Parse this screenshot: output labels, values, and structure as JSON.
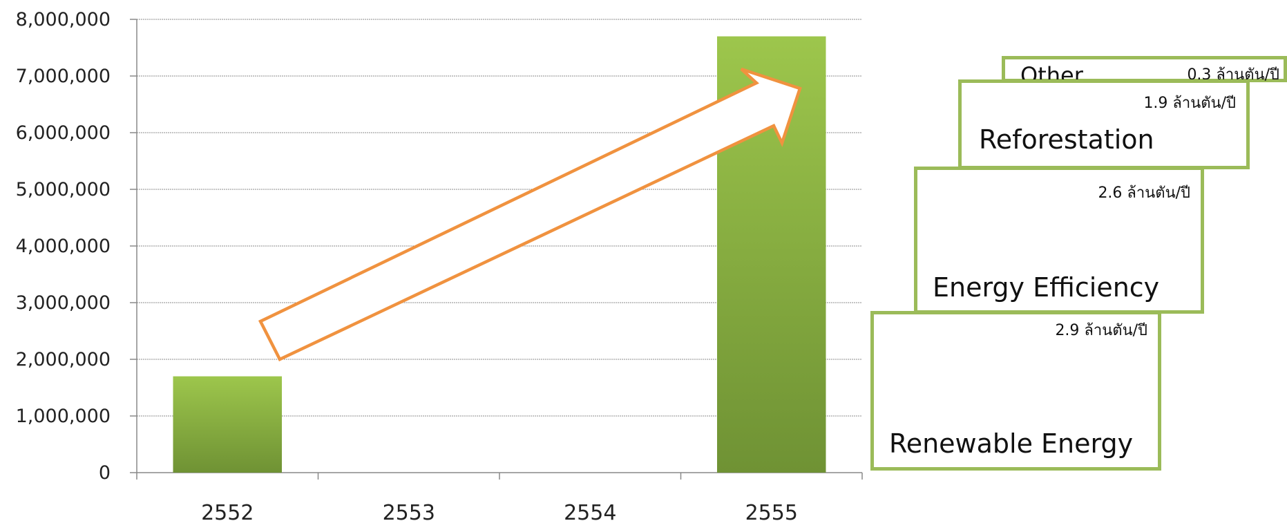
{
  "chart_data": {
    "type": "bar",
    "title": "",
    "xlabel": "",
    "ylabel": "",
    "categories": [
      "2552",
      "2553",
      "2554",
      "2555"
    ],
    "values": [
      1700000,
      null,
      null,
      7700000
    ],
    "ylim": [
      0,
      8000000
    ],
    "yticks": [
      "0",
      "1,000,000",
      "2,000,000",
      "3,000,000",
      "4,000,000",
      "5,000,000",
      "6,000,000",
      "7,000,000",
      "8,000,000"
    ],
    "grid": true,
    "bar_color": "#8fb04a",
    "arrow_color": "#f0923f"
  },
  "breakdown": [
    {
      "name": "Renewable Energy",
      "value": "2.9 ล้านตัน/ปี"
    },
    {
      "name": "Energy Efficiency",
      "value": "2.6 ล้านตัน/ปี"
    },
    {
      "name": "Reforestation",
      "value": "1.9 ล้านตัน/ปี"
    },
    {
      "name": "Other",
      "value": "0.3 ล้านตัน/ปี"
    }
  ],
  "colors": {
    "box_border": "#9bbb59",
    "grid": "#8a8a8a"
  }
}
